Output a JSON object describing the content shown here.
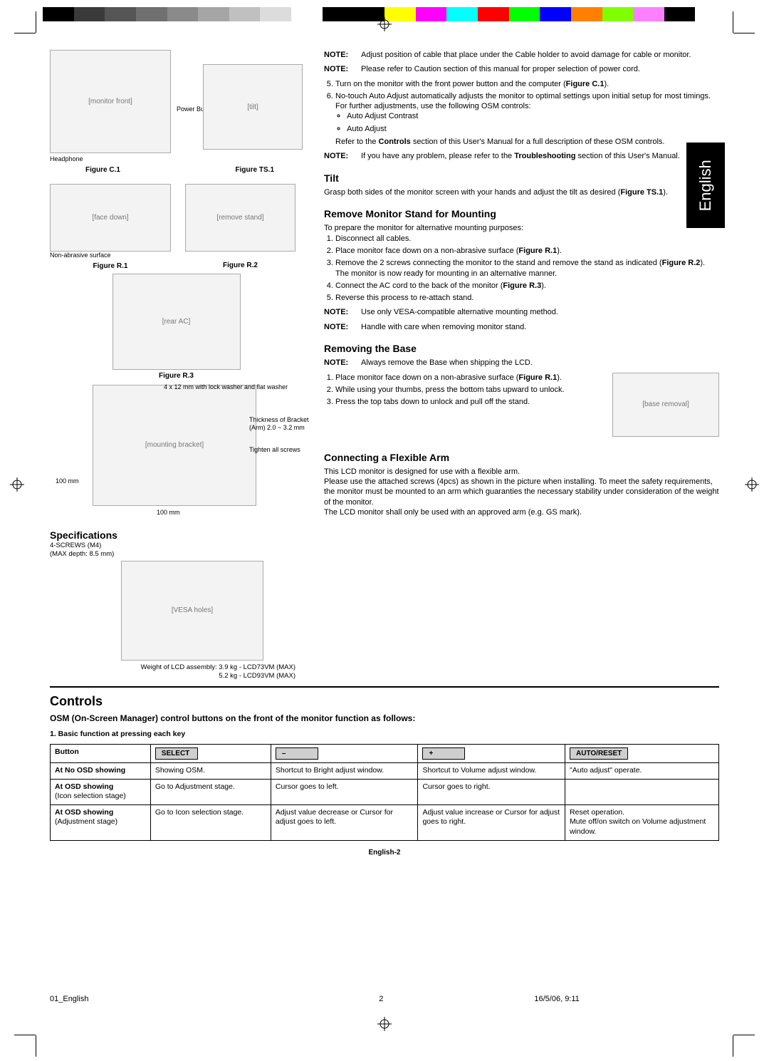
{
  "colorbar": [
    "#000000",
    "#3a3a3a",
    "#555555",
    "#707070",
    "#8a8a8a",
    "#a5a5a5",
    "#c0c0c0",
    "#dcdcdc",
    "#ffffff",
    "#000000",
    "#000000",
    "#ffff00",
    "#ff00ff",
    "#00ffff",
    "#ff0000",
    "#00ff00",
    "#0000ff",
    "#ff8000",
    "#80ff00",
    "#ff80ff",
    "#000000",
    "#ffffff"
  ],
  "language_tab": "English",
  "left_figures": {
    "c1": {
      "label": "Figure C.1",
      "callout1": "Power Button",
      "callout2": "Headphone"
    },
    "ts1": {
      "label": "Figure TS.1"
    },
    "r1": {
      "label": "Figure R.1",
      "callout": "Non-abrasive surface"
    },
    "r2": {
      "label": "Figure R.2"
    },
    "r3": {
      "label": "Figure R.3"
    },
    "mount_notes": {
      "n1": "4 x 12 mm with lock washer and flat washer",
      "n2": "Thickness of Bracket (Arm) 2.0 ~ 3.2 mm",
      "n3": "Tighten all screws",
      "dim1": "100 mm",
      "dim2": "100 mm"
    },
    "spec_title": "Specifications",
    "spec_lines": [
      "4-SCREWS (M4)",
      "(MAX depth: 8.5 mm)"
    ],
    "weight1": "Weight of LCD assembly:  3.9 kg - LCD73VM (MAX)",
    "weight2": "5.2 kg - LCD93VM (MAX)"
  },
  "right": {
    "notes_top": [
      {
        "b": "NOTE:",
        "t": "Adjust position of cable that place under the Cable holder to avoid damage for cable or monitor."
      },
      {
        "b": "NOTE:",
        "t": "Please refer to Caution section of this manual for proper selection of power cord."
      }
    ],
    "step5": "Turn on the monitor with the front power button and the computer (",
    "step5_fig": "Figure C.1",
    "step5_end": ").",
    "step6": "No-touch Auto Adjust automatically adjusts the monitor to optimal settings upon initial setup for most timings.",
    "step6b": "For further adjustments, use the following OSM controls:",
    "step6_bullets": [
      "Auto Adjust Contrast",
      "Auto Adjust"
    ],
    "refer1a": "Refer to the ",
    "refer1b": "Controls",
    "refer1c": " section of this User's Manual for a full description of these OSM controls.",
    "note_trouble": {
      "b": "NOTE:",
      "t1": "If you have any problem, please refer to the ",
      "t2": "Troubleshooting",
      "t3": " section of this User's Manual."
    },
    "tilt_h": "Tilt",
    "tilt_p": "Grasp both sides of the monitor screen with your hands and adjust the tilt as desired (",
    "tilt_fig": "Figure TS.1",
    "tilt_end": ").",
    "remove_h": "Remove Monitor Stand for Mounting",
    "remove_intro": "To prepare the monitor for alternative mounting purposes:",
    "remove_steps": [
      "Disconnect all cables.",
      "Place monitor face down on a non-abrasive surface (<b>Figure R.1</b>).",
      "Remove the 2 screws connecting the monitor to the stand and remove the stand as indicated (<b>Figure R.2</b>).<br>The monitor is now ready for mounting in an alternative manner.",
      "Connect the AC cord to the back of the monitor (<b>Figure R.3</b>).",
      "Reverse this process to re-attach stand."
    ],
    "remove_notes": [
      {
        "b": "NOTE:",
        "t": "Use only VESA-compatible alternative mounting method."
      },
      {
        "b": "NOTE:",
        "t": "Handle with care when removing monitor stand."
      }
    ],
    "base_h": "Removing the Base",
    "base_note": {
      "b": "NOTE:",
      "t": "Always remove the Base when shipping the LCD."
    },
    "base_steps": [
      "Place monitor face down on a non-abrasive surface (<b>Figure R.1</b>).",
      "While using your thumbs, press the bottom tabs upward to unlock.",
      "Press the top tabs down to unlock and pull off the stand."
    ],
    "arm_h": "Connecting a Flexible Arm",
    "arm_p1": "This LCD monitor is designed for use with a flexible arm.",
    "arm_p2": "Please use the attached screws (4pcs) as shown in the picture when installing. To meet the safety requirements, the monitor must be mounted to an arm which guaranties the necessary stability under consideration of the weight of the monitor.",
    "arm_p3": "The LCD monitor shall only be used with an approved arm (e.g. GS mark)."
  },
  "controls": {
    "h": "Controls",
    "intro": "OSM (On-Screen Manager) control buttons on the front of the monitor function as follows:",
    "sub": "1. Basic function at pressing each key",
    "headers": [
      "Button",
      "SELECT",
      "–",
      "+",
      "AUTO/RESET"
    ],
    "rows": [
      {
        "h": "At No OSD showing",
        "c": [
          "Showing OSM.",
          "Shortcut to Bright adjust window.",
          "Shortcut to Volume adjust window.",
          "\"Auto adjust\" operate."
        ]
      },
      {
        "h": "At OSD showing",
        "hsub": "(Icon selection stage)",
        "c": [
          "Go to Adjustment stage.",
          "Cursor goes to left.",
          "Cursor goes to right.",
          ""
        ]
      },
      {
        "h": "At OSD showing",
        "hsub": "(Adjustment stage)",
        "c": [
          "Go to Icon selection stage.",
          "Adjust value decrease or Cursor for adjust goes to left.",
          "Adjust value increase or Cursor for adjust goes to right.",
          "Reset operation.\nMute off/on switch on Volume adjustment window."
        ]
      }
    ]
  },
  "page_num": "English-2",
  "footer": {
    "l": "01_English",
    "c": "2",
    "r": "16/5/06, 9:11"
  }
}
